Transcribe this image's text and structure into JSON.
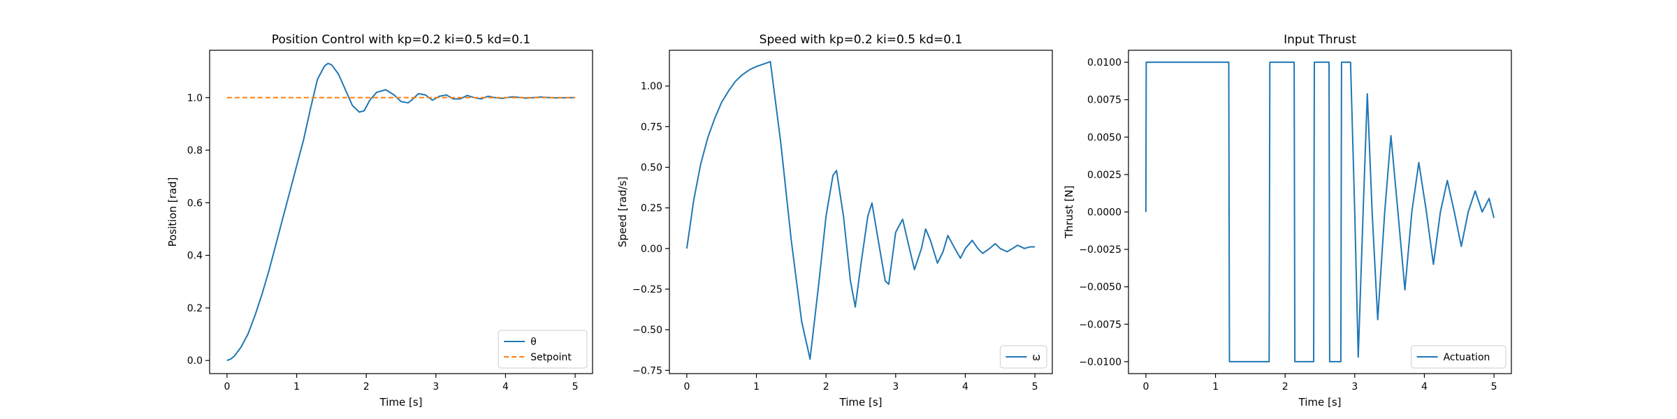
{
  "chart_data": [
    {
      "type": "line",
      "title": "Position Control with kp=0.2 ki=0.5 kd=0.1",
      "xlabel": "Time [s]",
      "ylabel": "Position [rad]",
      "xlim": [
        -0.25,
        5.25
      ],
      "ylim": [
        -0.05,
        1.18
      ],
      "xticks": [
        0,
        1,
        2,
        3,
        4,
        5
      ],
      "xtick_labels": [
        "0",
        "1",
        "2",
        "3",
        "4",
        "5"
      ],
      "yticks": [
        0.0,
        0.2,
        0.4,
        0.6,
        0.8,
        1.0
      ],
      "ytick_labels": [
        "0.0",
        "0.2",
        "0.4",
        "0.6",
        "0.8",
        "1.0"
      ],
      "grid": false,
      "legend": "lower-right",
      "series": [
        {
          "name": "θ",
          "color": "#1f77b4",
          "style": "solid",
          "x": [
            0,
            0.05,
            0.1,
            0.2,
            0.3,
            0.4,
            0.5,
            0.6,
            0.7,
            0.8,
            0.9,
            1.0,
            1.1,
            1.2,
            1.3,
            1.4,
            1.45,
            1.5,
            1.6,
            1.7,
            1.8,
            1.9,
            1.97,
            2.05,
            2.15,
            2.28,
            2.4,
            2.5,
            2.6,
            2.65,
            2.75,
            2.85,
            2.95,
            3.05,
            3.15,
            3.25,
            3.35,
            3.45,
            3.55,
            3.65,
            3.75,
            3.85,
            3.95,
            4.1,
            4.3,
            4.5,
            4.7,
            5.0
          ],
          "y": [
            0.0,
            0.005,
            0.015,
            0.05,
            0.1,
            0.17,
            0.25,
            0.34,
            0.44,
            0.54,
            0.64,
            0.74,
            0.84,
            0.96,
            1.07,
            1.12,
            1.13,
            1.125,
            1.09,
            1.03,
            0.97,
            0.945,
            0.95,
            0.99,
            1.02,
            1.03,
            1.01,
            0.985,
            0.98,
            0.99,
            1.015,
            1.01,
            0.99,
            1.005,
            1.01,
            0.995,
            0.995,
            1.008,
            1.0,
            0.995,
            1.005,
            1.0,
            0.997,
            1.003,
            0.998,
            1.002,
            0.999,
            1.0
          ]
        },
        {
          "name": "Setpoint",
          "color": "#ff7f0e",
          "style": "dashed",
          "x": [
            0,
            5
          ],
          "y": [
            1.0,
            1.0
          ]
        }
      ]
    },
    {
      "type": "line",
      "title": "Speed with kp=0.2 ki=0.5 kd=0.1",
      "xlabel": "Time [s]",
      "ylabel": "Speed [rad/s]",
      "xlim": [
        -0.25,
        5.25
      ],
      "ylim": [
        -0.77,
        1.22
      ],
      "xticks": [
        0,
        1,
        2,
        3,
        4,
        5
      ],
      "xtick_labels": [
        "0",
        "1",
        "2",
        "3",
        "4",
        "5"
      ],
      "yticks": [
        -0.75,
        -0.5,
        -0.25,
        0.0,
        0.25,
        0.5,
        0.75,
        1.0
      ],
      "ytick_labels": [
        "−0.75",
        "−0.50",
        "−0.25",
        "0.00",
        "0.25",
        "0.50",
        "0.75",
        "1.00"
      ],
      "grid": false,
      "legend": "lower-right",
      "series": [
        {
          "name": "ω",
          "color": "#1f77b4",
          "style": "solid",
          "x": [
            0,
            0.1,
            0.2,
            0.3,
            0.4,
            0.5,
            0.6,
            0.7,
            0.8,
            0.9,
            1.0,
            1.1,
            1.2,
            1.35,
            1.5,
            1.65,
            1.77,
            1.9,
            2.0,
            2.1,
            2.15,
            2.25,
            2.35,
            2.42,
            2.5,
            2.6,
            2.66,
            2.75,
            2.85,
            2.9,
            3.0,
            3.1,
            3.17,
            3.27,
            3.37,
            3.43,
            3.5,
            3.6,
            3.68,
            3.75,
            3.85,
            3.93,
            4.0,
            4.1,
            4.18,
            4.25,
            4.35,
            4.43,
            4.5,
            4.6,
            4.68,
            4.75,
            4.85,
            4.93,
            5.0
          ],
          "y": [
            0.0,
            0.3,
            0.52,
            0.68,
            0.8,
            0.9,
            0.97,
            1.03,
            1.07,
            1.1,
            1.12,
            1.135,
            1.15,
            0.65,
            0.05,
            -0.45,
            -0.68,
            -0.2,
            0.2,
            0.45,
            0.48,
            0.2,
            -0.2,
            -0.36,
            -0.1,
            0.2,
            0.28,
            0.05,
            -0.2,
            -0.22,
            0.1,
            0.18,
            0.05,
            -0.13,
            0.0,
            0.12,
            0.05,
            -0.09,
            -0.02,
            0.08,
            0.0,
            -0.06,
            0.0,
            0.05,
            0.0,
            -0.03,
            0.0,
            0.03,
            0.0,
            -0.02,
            0.0,
            0.02,
            0.0,
            0.01,
            0.01
          ]
        }
      ]
    },
    {
      "type": "line",
      "title": "Input Thrust",
      "xlabel": "Time [s]",
      "ylabel": "Thrust [N]",
      "xlim": [
        -0.25,
        5.25
      ],
      "ylim": [
        -0.0108,
        0.0108
      ],
      "xticks": [
        0,
        1,
        2,
        3,
        4,
        5
      ],
      "xtick_labels": [
        "0",
        "1",
        "2",
        "3",
        "4",
        "5"
      ],
      "yticks": [
        -0.01,
        -0.0075,
        -0.005,
        -0.0025,
        0.0,
        0.0025,
        0.005,
        0.0075,
        0.01
      ],
      "ytick_labels": [
        "−0.0100",
        "−0.0075",
        "−0.0050",
        "−0.0025",
        "0.0000",
        "0.0025",
        "0.0050",
        "0.0075",
        "0.0100"
      ],
      "grid": false,
      "legend": "lower-right",
      "series": [
        {
          "name": "Actuation",
          "color": "#1f77b4",
          "style": "solid",
          "x": [
            0,
            0.005,
            1.19,
            1.2,
            1.77,
            1.78,
            2.13,
            2.14,
            2.41,
            2.42,
            2.63,
            2.64,
            2.8,
            2.81,
            2.93,
            2.94,
            3.0,
            3.05,
            3.12,
            3.18,
            3.25,
            3.33,
            3.43,
            3.52,
            3.62,
            3.72,
            3.82,
            3.92,
            4.03,
            4.13,
            4.23,
            4.33,
            4.43,
            4.53,
            4.63,
            4.73,
            4.83,
            4.93,
            5.0
          ],
          "y": [
            0.0,
            0.01,
            0.01,
            -0.01,
            -0.01,
            0.01,
            0.01,
            -0.01,
            -0.01,
            0.01,
            0.01,
            -0.01,
            -0.01,
            0.01,
            0.01,
            0.01,
            0.0,
            -0.0097,
            0.0,
            0.0079,
            0.0,
            -0.0072,
            0.0,
            0.0051,
            0.0,
            -0.0052,
            0.0,
            0.0033,
            0.0,
            -0.0035,
            0.0,
            0.0021,
            0.0,
            -0.0023,
            0.0,
            0.0014,
            0.0,
            0.0009,
            -0.0004
          ]
        }
      ]
    }
  ]
}
